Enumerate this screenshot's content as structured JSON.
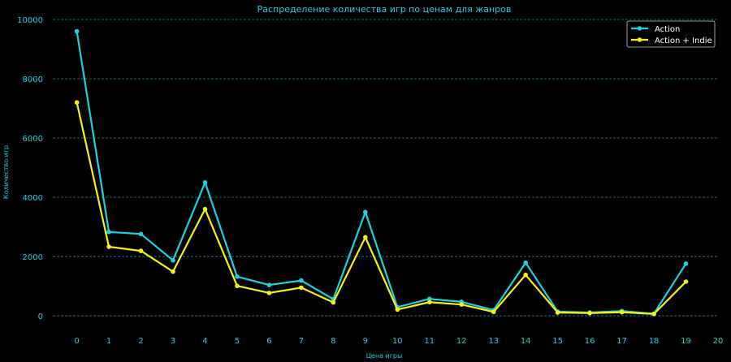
{
  "chart_data": {
    "type": "line",
    "title": "Распределение количества игр по ценам для жанров",
    "xlabel": "Цена игры",
    "ylabel": "Количество игр",
    "x": [
      0,
      1,
      2,
      3,
      4,
      5,
      6,
      7,
      8,
      9,
      10,
      11,
      12,
      13,
      14,
      15,
      16,
      17,
      18,
      19
    ],
    "xlim": [
      -0.75,
      20
    ],
    "ylim": [
      -300,
      10000
    ],
    "xticks": [
      "0",
      "1",
      "2",
      "3",
      "4",
      "5",
      "6",
      "7",
      "8",
      "9",
      "10",
      "11",
      "12",
      "13",
      "14",
      "15",
      "16",
      "17",
      "18",
      "19",
      "20"
    ],
    "yticks": [
      "0",
      "2000",
      "4000",
      "6000",
      "8000",
      "10000"
    ],
    "grid": "horizontal-dashed",
    "legend_position": "top-right",
    "series": [
      {
        "name": "Action",
        "color": "#19d3e0",
        "values": [
          9600,
          2830,
          2760,
          1870,
          4500,
          1320,
          1040,
          1190,
          560,
          3500,
          290,
          570,
          470,
          190,
          1790,
          140,
          110,
          160,
          70,
          1760
        ]
      },
      {
        "name": "Action + Indie",
        "color": "#f5f20f",
        "values": [
          7200,
          2330,
          2190,
          1490,
          3600,
          1010,
          770,
          950,
          450,
          2650,
          210,
          460,
          380,
          130,
          1380,
          110,
          90,
          120,
          60,
          1150
        ]
      }
    ]
  }
}
